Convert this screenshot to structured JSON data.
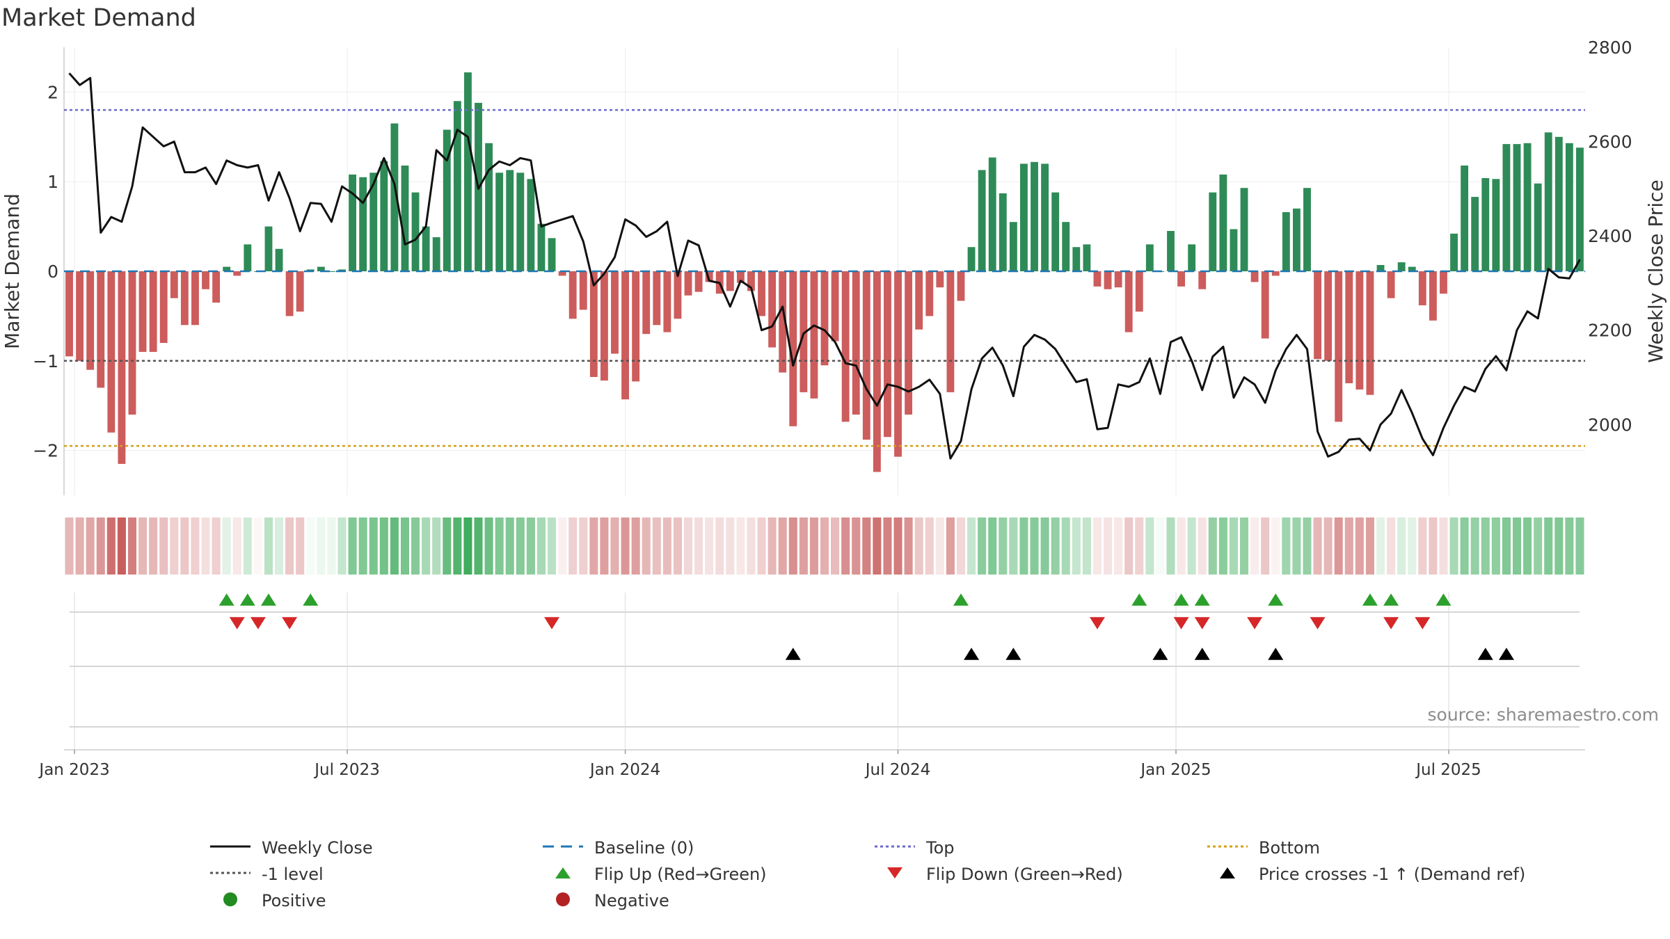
{
  "title": "Market Demand",
  "source": "source: sharemaestro.com",
  "colors": {
    "positive": "#2e8b57",
    "negative": "#cd5c5c",
    "price": "#111111",
    "baseline": "#1f77b4",
    "top": "#6a6acd",
    "bottom": "#d4a017",
    "minus1": "#555555",
    "flip_up": "#2ca02c",
    "flip_down": "#d62728",
    "cross": "#000000"
  },
  "chart_data": {
    "type": "bar",
    "ylabel_left": "Market Demand",
    "ylabel_right": "Weekly Close Price",
    "ylim_left": [
      -2.5,
      2.5
    ],
    "yticks_left": [
      2,
      1,
      0,
      -1,
      -2
    ],
    "ytick_labels_left": [
      "2",
      "1",
      "0",
      "−1",
      "−2"
    ],
    "ylim_right": [
      1850,
      2800
    ],
    "yticks_right": [
      2000,
      2200,
      2400,
      2600,
      2800
    ],
    "ytick_labels_right": [
      "2000",
      "2200",
      "2400",
      "2600",
      "2800"
    ],
    "x_start_week": -0.5,
    "x_end_week": 144.5,
    "xtick_weeks": [
      0.5,
      26.5,
      53,
      79,
      105.5,
      131.5
    ],
    "xtick_labels": [
      "Jan 2023",
      "Jul 2023",
      "Jan 2024",
      "Jul 2024",
      "Jan 2025",
      "Jul 2025"
    ],
    "reference_lines": {
      "top": 1.8,
      "bottom": -1.95,
      "minus1": -1,
      "baseline": 0
    },
    "demand": [
      -0.95,
      -1.0,
      -1.1,
      -1.3,
      -1.8,
      -2.15,
      -1.6,
      -0.9,
      -0.9,
      -0.8,
      -0.3,
      -0.6,
      -0.6,
      -0.2,
      -0.35,
      0.05,
      -0.05,
      0.3,
      0.0,
      0.5,
      0.25,
      -0.5,
      -0.45,
      0.02,
      0.05,
      0.0,
      0.02,
      1.08,
      1.05,
      1.1,
      1.23,
      1.65,
      1.18,
      0.88,
      0.5,
      0.38,
      1.58,
      1.9,
      2.22,
      1.88,
      1.43,
      1.1,
      1.13,
      1.1,
      1.03,
      0.53,
      0.37,
      -0.05,
      -0.53,
      -0.43,
      -1.18,
      -1.22,
      -0.92,
      -1.43,
      -1.23,
      -0.7,
      -0.6,
      -0.68,
      -0.53,
      -0.27,
      -0.23,
      -0.12,
      -0.25,
      -0.22,
      -0.13,
      -0.22,
      -0.5,
      -0.85,
      -1.13,
      -1.73,
      -1.35,
      -1.42,
      -1.05,
      -0.78,
      -1.68,
      -1.6,
      -1.88,
      -2.24,
      -1.85,
      -2.07,
      -1.6,
      -0.65,
      -0.5,
      -0.18,
      -1.35,
      -0.33,
      0.27,
      1.13,
      1.27,
      0.87,
      0.55,
      1.2,
      1.22,
      1.2,
      0.88,
      0.55,
      0.27,
      0.3,
      -0.17,
      -0.2,
      -0.18,
      -0.68,
      -0.45,
      0.3,
      0.0,
      0.45,
      -0.17,
      0.3,
      -0.2,
      0.88,
      1.08,
      0.47,
      0.93,
      -0.12,
      -0.75,
      -0.05,
      0.66,
      0.7,
      0.93,
      -0.98,
      -1.0,
      -1.68,
      -1.25,
      -1.32,
      -1.38,
      0.07,
      -0.3,
      0.1,
      0.05,
      -0.38,
      -0.55,
      -0.25,
      0.42,
      1.18,
      0.83,
      1.04,
      1.03,
      1.42,
      1.42,
      1.43,
      0.98,
      1.55,
      1.5,
      1.43,
      1.38
    ],
    "price": [
      2745,
      2720,
      2735,
      2407,
      2440,
      2430,
      2505,
      2630,
      2610,
      2590,
      2600,
      2535,
      2535,
      2545,
      2510,
      2560,
      2550,
      2545,
      2550,
      2475,
      2535,
      2480,
      2410,
      2470,
      2468,
      2430,
      2505,
      2490,
      2470,
      2510,
      2565,
      2510,
      2382,
      2392,
      2420,
      2582,
      2560,
      2625,
      2610,
      2500,
      2540,
      2558,
      2550,
      2565,
      2560,
      2420,
      2428,
      2435,
      2442,
      2388,
      2295,
      2320,
      2355,
      2435,
      2422,
      2398,
      2410,
      2430,
      2315,
      2390,
      2380,
      2305,
      2300,
      2250,
      2305,
      2290,
      2200,
      2208,
      2250,
      2125,
      2193,
      2210,
      2200,
      2175,
      2130,
      2125,
      2075,
      2040,
      2085,
      2080,
      2070,
      2080,
      2095,
      2065,
      1928,
      1965,
      2075,
      2140,
      2163,
      2125,
      2060,
      2165,
      2190,
      2180,
      2160,
      2125,
      2090,
      2096,
      1990,
      1993,
      2085,
      2080,
      2090,
      2140,
      2065,
      2175,
      2185,
      2135,
      2073,
      2144,
      2165,
      2057,
      2100,
      2085,
      2046,
      2115,
      2160,
      2190,
      2160,
      1985,
      1932,
      1942,
      1968,
      1970,
      1945,
      2000,
      2023,
      2073,
      2025,
      1970,
      1935,
      1993,
      2040,
      2080,
      2070,
      2118,
      2145,
      2115,
      2200,
      2240,
      2225,
      2330,
      2312,
      2310,
      2350
    ],
    "heat_strip": [
      -0.45,
      -0.5,
      -0.55,
      -0.65,
      -0.9,
      -1.0,
      -0.8,
      -0.45,
      -0.45,
      -0.4,
      -0.3,
      -0.35,
      -0.3,
      -0.2,
      -0.3,
      0.15,
      -0.15,
      0.25,
      -0.05,
      0.35,
      0.2,
      -0.35,
      -0.35,
      0.05,
      0.1,
      0.1,
      0.3,
      0.65,
      0.65,
      0.68,
      0.72,
      0.8,
      0.7,
      0.62,
      0.45,
      0.4,
      0.78,
      0.88,
      0.98,
      0.88,
      0.75,
      0.65,
      0.65,
      0.62,
      0.6,
      0.45,
      0.35,
      -0.1,
      -0.3,
      -0.3,
      -0.55,
      -0.6,
      -0.5,
      -0.65,
      -0.6,
      -0.45,
      -0.4,
      -0.42,
      -0.38,
      -0.25,
      -0.22,
      -0.18,
      -0.22,
      -0.2,
      -0.15,
      -0.2,
      -0.3,
      -0.45,
      -0.55,
      -0.7,
      -0.6,
      -0.62,
      -0.5,
      -0.42,
      -0.7,
      -0.68,
      -0.78,
      -0.88,
      -0.78,
      -0.82,
      -0.68,
      -0.35,
      -0.3,
      -0.15,
      -0.6,
      -0.25,
      0.3,
      0.6,
      0.65,
      0.55,
      0.45,
      0.62,
      0.62,
      0.62,
      0.55,
      0.45,
      0.3,
      0.32,
      -0.15,
      -0.18,
      -0.15,
      -0.35,
      -0.28,
      0.3,
      0.05,
      0.4,
      -0.15,
      0.3,
      -0.18,
      0.55,
      0.6,
      0.45,
      0.55,
      -0.12,
      -0.35,
      -0.08,
      0.5,
      0.52,
      0.55,
      -0.45,
      -0.45,
      -0.65,
      -0.55,
      -0.58,
      -0.6,
      0.15,
      -0.2,
      0.2,
      0.15,
      -0.3,
      -0.35,
      -0.2,
      0.45,
      0.6,
      0.55,
      0.58,
      0.58,
      0.65,
      0.65,
      0.65,
      0.55,
      0.65,
      0.65,
      0.62,
      0.62
    ],
    "flip_up_weeks": [
      15,
      17,
      19,
      23,
      85,
      102,
      106,
      108,
      115,
      124,
      126,
      131
    ],
    "flip_down_weeks": [
      16,
      18,
      21,
      46,
      98,
      106,
      108,
      113,
      119,
      126,
      129
    ],
    "price_cross_weeks": [
      69,
      86,
      90,
      104,
      108,
      115,
      135,
      137
    ]
  },
  "legend": [
    {
      "label": "Weekly Close",
      "symbol": "solid-line",
      "color": "#111111"
    },
    {
      "label": "Baseline (0)",
      "symbol": "dash-line",
      "color": "#1f77b4"
    },
    {
      "label": "Top",
      "symbol": "dot-line",
      "color": "#6a6acd"
    },
    {
      "label": "Bottom",
      "symbol": "dot-line",
      "color": "#d4a017"
    },
    {
      "label": "-1 level",
      "symbol": "dot-line",
      "color": "#555555"
    },
    {
      "label": "Flip Up (Red→Green)",
      "symbol": "triangle-up",
      "color": "#2ca02c"
    },
    {
      "label": "Flip Down (Green→Red)",
      "symbol": "triangle-down",
      "color": "#d62728"
    },
    {
      "label": "Price crosses -1 ↑ (Demand ref)",
      "symbol": "triangle-up",
      "color": "#000000"
    },
    {
      "label": "Positive",
      "symbol": "circle",
      "color": "#228b22"
    },
    {
      "label": "Negative",
      "symbol": "circle",
      "color": "#b22222"
    }
  ]
}
